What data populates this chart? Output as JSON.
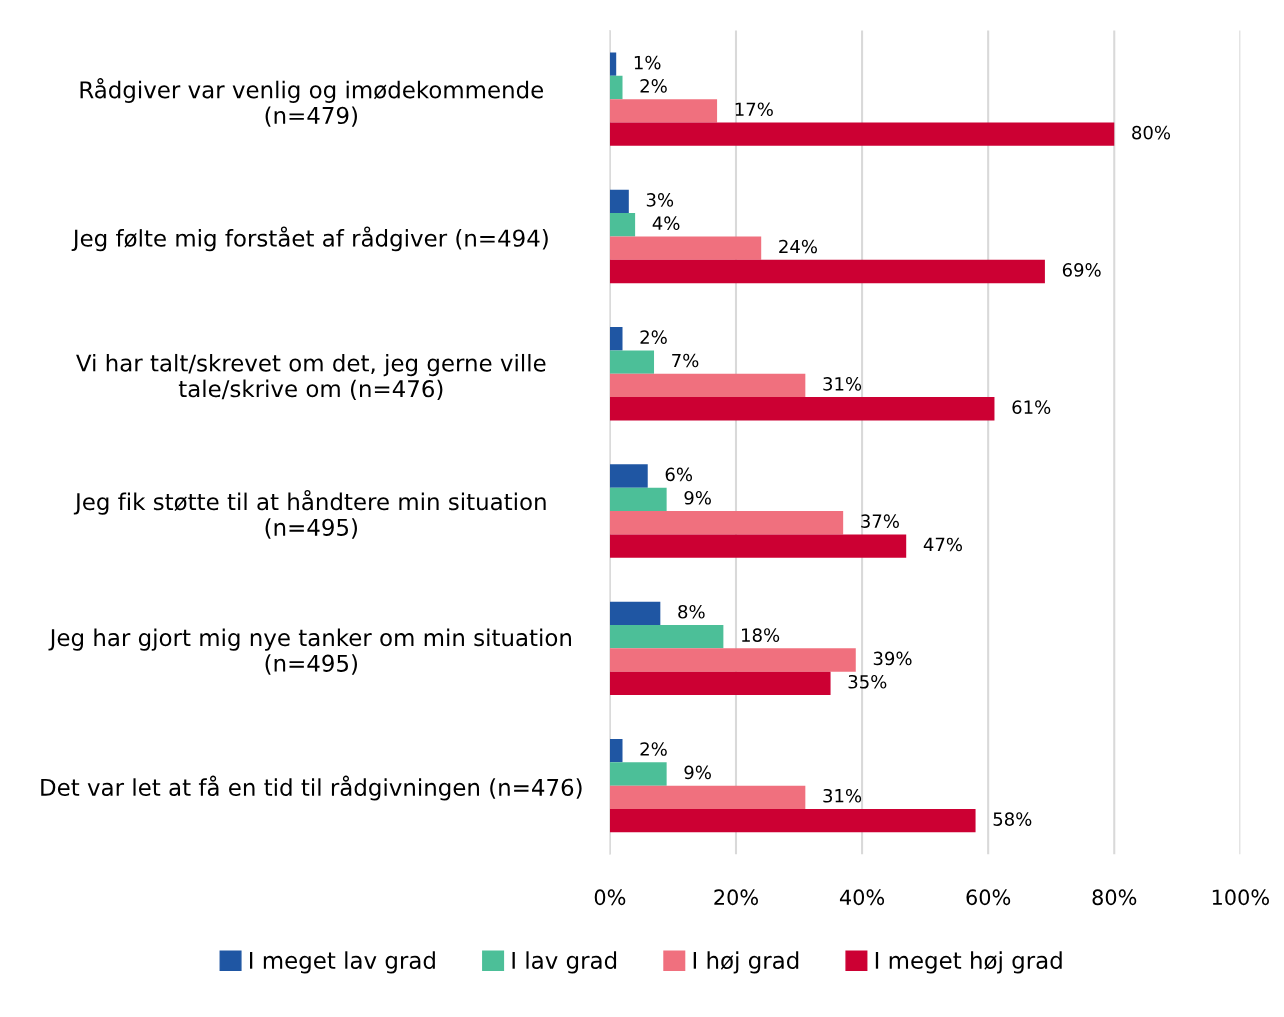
{
  "chart_data": {
    "type": "bar",
    "orientation": "horizontal",
    "categories": [
      "Rådgiver var venlig og imødekommende\n(n=479)",
      "Jeg følte mig forstået af rådgiver (n=494)",
      "Vi har talt/skrevet om det, jeg gerne ville\ntale/skrive om (n=476)",
      "Jeg fik støtte til at håndtere min situation\n(n=495)",
      "Jeg har gjort mig nye tanker om min situation\n(n=495)",
      "Det var let at få en tid til rådgivningen (n=476)"
    ],
    "series": [
      {
        "name": "I meget lav grad",
        "color": "#1f56a3",
        "values": [
          1,
          3,
          2,
          6,
          8,
          2
        ],
        "value_labels": [
          "1%",
          "3%",
          "2%",
          "6%",
          "8%",
          "2%"
        ]
      },
      {
        "name": "I lav grad",
        "color": "#4cbf98",
        "values": [
          2,
          4,
          7,
          9,
          18,
          9
        ],
        "value_labels": [
          "2%",
          "4%",
          "7%",
          "9%",
          "18%",
          "9%"
        ]
      },
      {
        "name": "I høj grad",
        "color": "#f0707e",
        "values": [
          17,
          24,
          31,
          37,
          39,
          31
        ],
        "value_labels": [
          "17%",
          "24%",
          "31%",
          "37%",
          "39%",
          "31%"
        ]
      },
      {
        "name": "I meget høj grad",
        "color": "#cc0033",
        "values": [
          80,
          69,
          61,
          47,
          35,
          58
        ],
        "value_labels": [
          "80%",
          "69%",
          "61%",
          "47%",
          "35%",
          "58%"
        ]
      }
    ],
    "xlim": [
      0,
      100
    ],
    "xticks": [
      {
        "value": 0,
        "label": "0%"
      },
      {
        "value": 20,
        "label": "20%"
      },
      {
        "value": 40,
        "label": "40%"
      },
      {
        "value": 60,
        "label": "60%"
      },
      {
        "value": 80,
        "label": "80%"
      },
      {
        "value": 100,
        "label": "100%"
      }
    ],
    "grid": "x",
    "legend": "bottom"
  }
}
